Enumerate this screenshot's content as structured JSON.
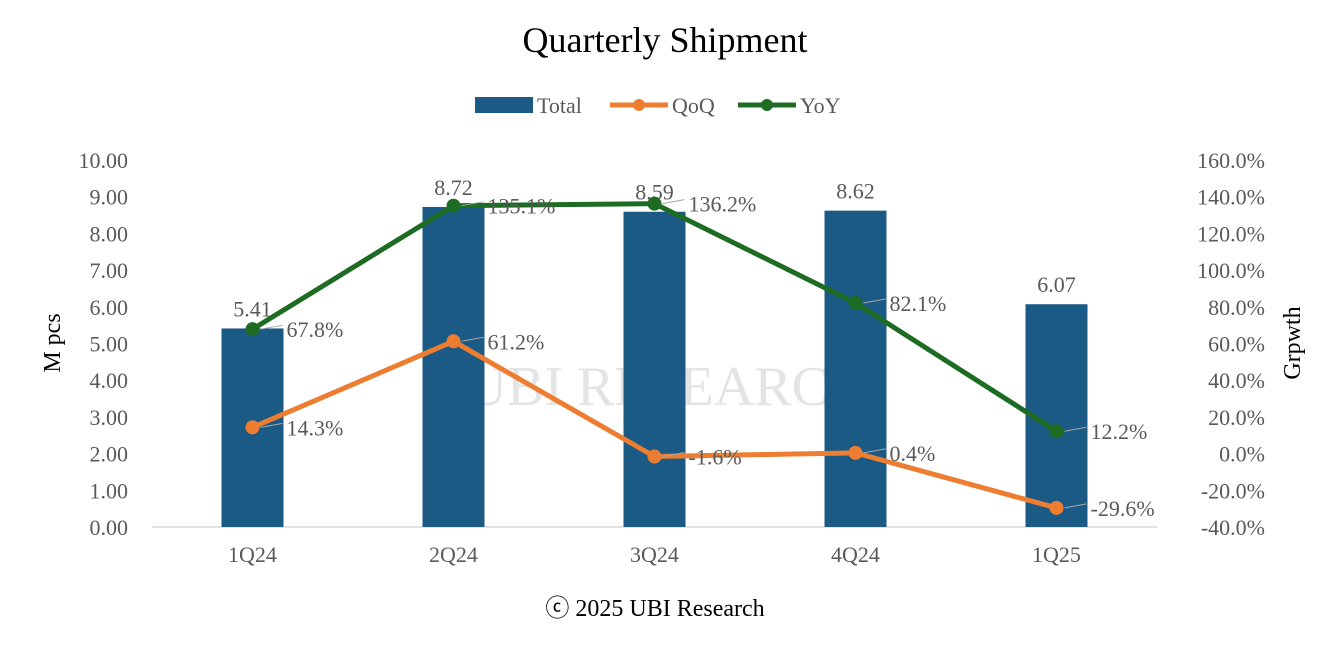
{
  "chart_data": {
    "type": "bar+line",
    "title": "Quarterly Shipment",
    "categories": [
      "1Q24",
      "2Q24",
      "3Q24",
      "4Q24",
      "1Q25"
    ],
    "series": [
      {
        "name": "Total",
        "type": "bar",
        "axis": "left",
        "color": "#1b5a84",
        "values": [
          5.41,
          8.72,
          8.59,
          8.62,
          6.07
        ],
        "labels": [
          "5.41",
          "8.72",
          "8.59",
          "8.62",
          "6.07"
        ]
      },
      {
        "name": "QoQ",
        "type": "line",
        "axis": "right",
        "color": "#ed7d31",
        "values": [
          14.3,
          61.2,
          -1.6,
          0.4,
          -29.6
        ],
        "labels": [
          "14.3%",
          "61.2%",
          "-1.6%",
          "0.4%",
          "-29.6%"
        ]
      },
      {
        "name": "YoY",
        "type": "line",
        "axis": "right",
        "color": "#1e6b23",
        "values": [
          67.8,
          135.1,
          136.2,
          82.1,
          12.2
        ],
        "labels": [
          "67.8%",
          "135.1%",
          "136.2%",
          "82.1%",
          "12.2%"
        ]
      }
    ],
    "ylabel": "M pcs",
    "y2label": "Grpwth",
    "ylim": [
      0,
      10
    ],
    "y2lim": [
      -40,
      160
    ],
    "yticks": [
      "0.00",
      "1.00",
      "2.00",
      "3.00",
      "4.00",
      "5.00",
      "6.00",
      "7.00",
      "8.00",
      "9.00",
      "10.00"
    ],
    "y2ticks": [
      "-40.0%",
      "-20.0%",
      "0.0%",
      "20.0%",
      "40.0%",
      "60.0%",
      "80.0%",
      "100.0%",
      "120.0%",
      "140.0%",
      "160.0%"
    ],
    "legend": "top",
    "grid": false,
    "footer": "ⓒ 2025 UBI Research",
    "watermark": "UBI RESEARCH"
  }
}
